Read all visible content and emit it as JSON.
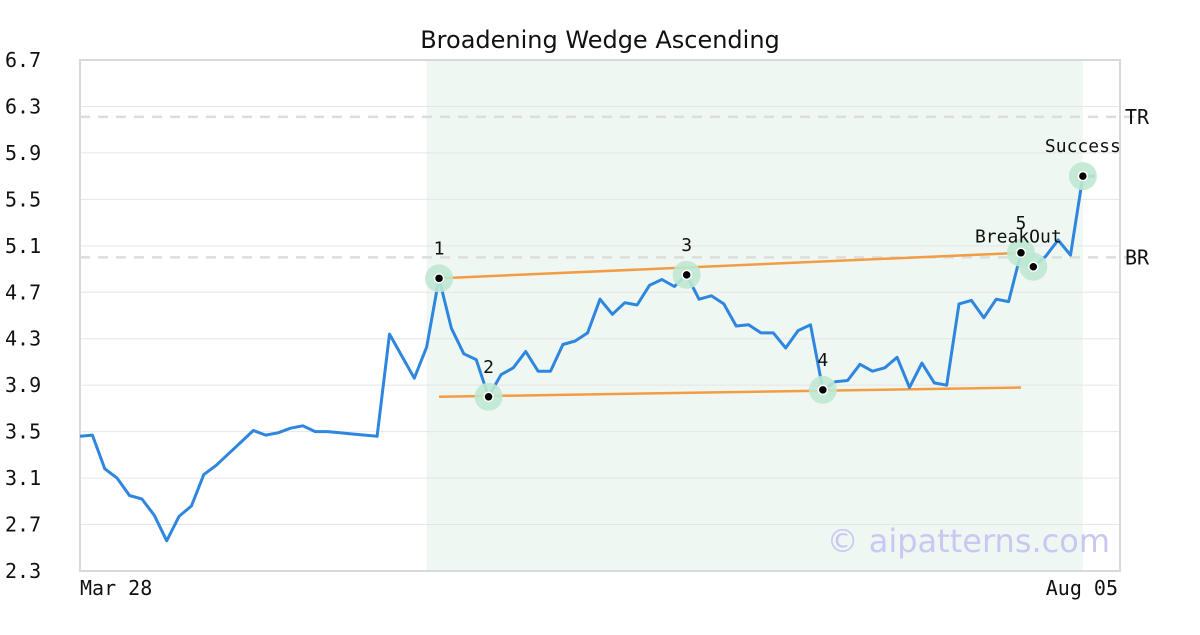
{
  "chart_data": {
    "type": "line",
    "title": "Broadening Wedge Ascending",
    "xlabel": "",
    "ylabel": "",
    "ylim": [
      2.3,
      6.7
    ],
    "yticks": [
      "2.3",
      "2.7",
      "3.1",
      "3.5",
      "3.9",
      "4.3",
      "4.7",
      "5.1",
      "5.5",
      "5.9",
      "6.3",
      "6.7"
    ],
    "x_start_label": "Mar 28",
    "x_end_label": "Aug 05",
    "grid": "horizontal",
    "x_count": 85,
    "series": [
      {
        "values": [
          3.46,
          3.47,
          3.18,
          3.1,
          2.95,
          2.92,
          2.78,
          2.56,
          2.77,
          2.86,
          3.13,
          3.21,
          3.31,
          3.41,
          3.51,
          3.47,
          3.49,
          3.53,
          3.55,
          3.5,
          3.5,
          3.49,
          3.48,
          3.47,
          3.46,
          4.34,
          4.15,
          3.96,
          4.23,
          4.82,
          4.39,
          4.17,
          4.12,
          3.8,
          3.99,
          4.05,
          4.19,
          4.02,
          4.02,
          4.25,
          4.28,
          4.35,
          4.64,
          4.51,
          4.61,
          4.59,
          4.76,
          4.81,
          4.75,
          4.85,
          4.64,
          4.67,
          4.6,
          4.41,
          4.42,
          4.35,
          4.35,
          4.22,
          4.37,
          4.42,
          3.86,
          3.93,
          3.94,
          4.08,
          4.02,
          4.05,
          4.14,
          3.88,
          4.09,
          3.92,
          3.9,
          4.6,
          4.63,
          4.48,
          4.64,
          4.62,
          5.04,
          4.92,
          5.01,
          5.15,
          5.02,
          5.7
        ]
      }
    ],
    "pattern_region": {
      "x_start": 28,
      "x_end": 81
    },
    "trend_lines": [
      {
        "x1": 29,
        "y1": 4.82,
        "x2": 76,
        "y2": 5.04
      },
      {
        "x1": 29,
        "y1": 3.8,
        "x2": 76,
        "y2": 3.88
      }
    ],
    "levels": [
      {
        "label": "TR",
        "y": 6.21
      },
      {
        "label": "BR",
        "y": 5.0
      }
    ],
    "points": [
      {
        "label": "1",
        "x": 29,
        "y": 4.82
      },
      {
        "label": "2",
        "x": 33,
        "y": 3.8
      },
      {
        "label": "3",
        "x": 49,
        "y": 4.85
      },
      {
        "label": "4",
        "x": 60,
        "y": 3.86
      },
      {
        "label": "5",
        "x": 76,
        "y": 5.04
      },
      {
        "label": "BreakOut",
        "x": 77,
        "y": 4.92
      },
      {
        "label": "Success",
        "x": 81,
        "y": 5.7
      }
    ],
    "watermark": "© aipatterns.com",
    "colors": {
      "line": "#2e86de",
      "trend": "#f39c44",
      "region": "#eef7f2",
      "marker_halo": "#bfe8d2",
      "level": "#dddddd",
      "grid": "#e6e6e6"
    }
  }
}
